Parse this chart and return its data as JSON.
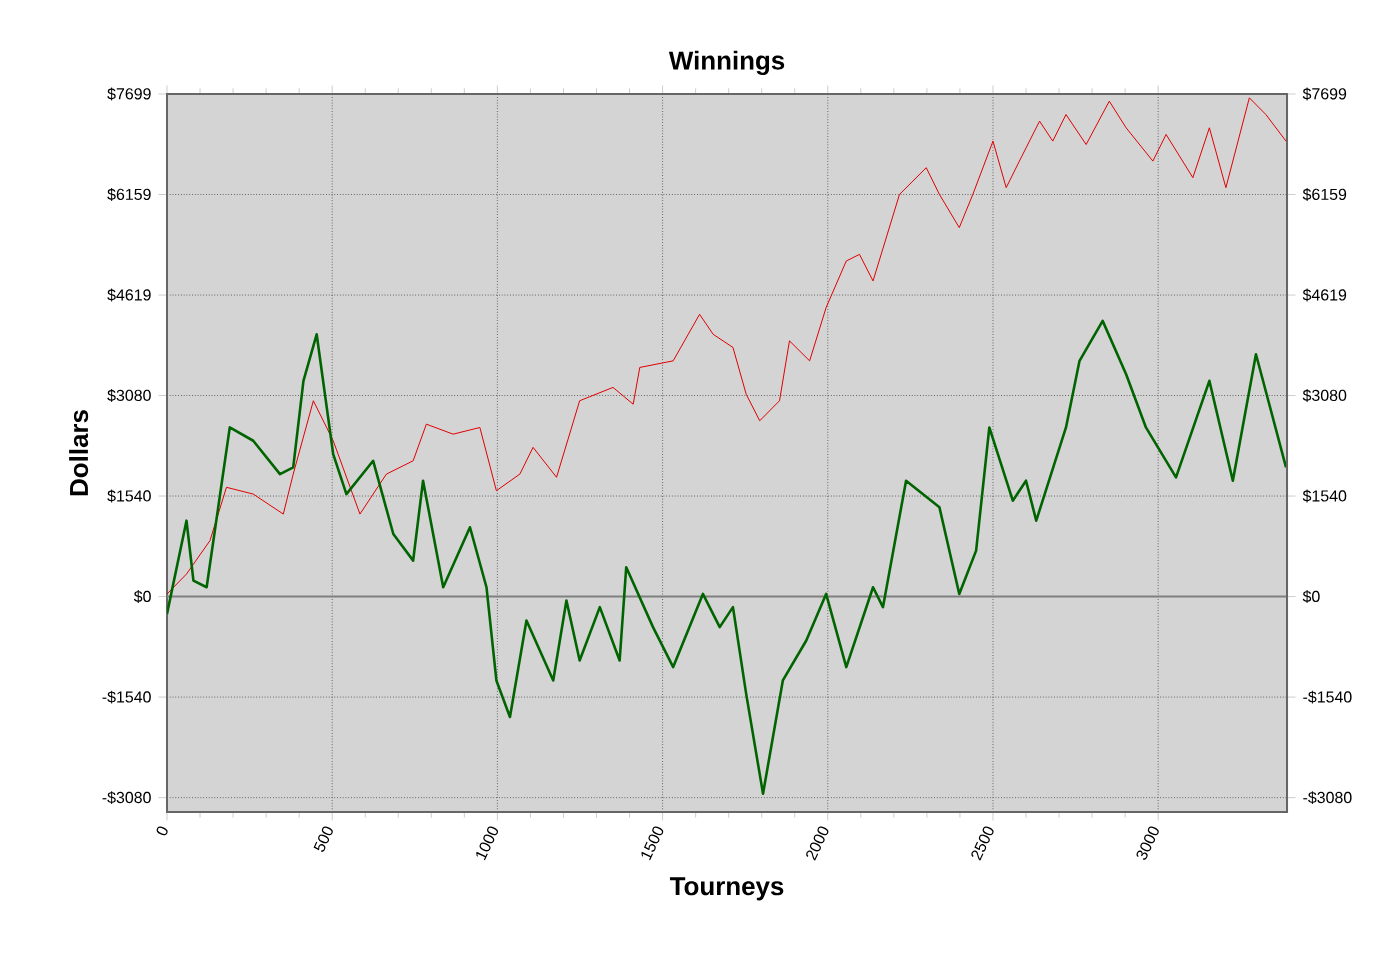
{
  "chart_data": {
    "type": "line",
    "title": "Winnings",
    "xlabel": "Tourneys",
    "ylabel": "Dollars",
    "xlim": [
      0,
      3390
    ],
    "ylim": [
      -3300,
      7699
    ],
    "xticks": [
      0,
      500,
      1000,
      1500,
      2000,
      2500,
      3000
    ],
    "yticks": [
      {
        "value": -3080,
        "label": "-$3080"
      },
      {
        "value": -1540,
        "label": "-$1540"
      },
      {
        "value": 0,
        "label": "$0"
      },
      {
        "value": 1540,
        "label": "$1540"
      },
      {
        "value": 3080,
        "label": "$3080"
      },
      {
        "value": 4619,
        "label": "$4619"
      },
      {
        "value": 6159,
        "label": "$6159"
      },
      {
        "value": 7699,
        "label": "$7699"
      }
    ],
    "y2lim": [
      -3300,
      7699
    ],
    "y2ticks": [
      {
        "value": -3080,
        "label": "-$3080"
      },
      {
        "value": -1540,
        "label": "-$1540"
      },
      {
        "value": 0,
        "label": "$0"
      },
      {
        "value": 1540,
        "label": "$1540"
      },
      {
        "value": 3080,
        "label": "$3080"
      },
      {
        "value": 4619,
        "label": "$4619"
      },
      {
        "value": 6159,
        "label": "$6159"
      },
      {
        "value": 7699,
        "label": "$7699"
      }
    ],
    "grid": true,
    "ref_lines": [
      {
        "axis": "y",
        "value": 0,
        "color": "#808080"
      }
    ],
    "series": [
      {
        "color": "#e00000",
        "x": [
          0,
          59,
          130,
          180,
          261,
          352,
          382,
          443,
          503,
          584,
          664,
          745,
          785,
          866,
          947,
          997,
          1068,
          1108,
          1179,
          1249,
          1350,
          1411,
          1431,
          1532,
          1612,
          1653,
          1713,
          1753,
          1794,
          1854,
          1884,
          1945,
          1995,
          2056,
          2096,
          2137,
          2217,
          2298,
          2338,
          2398,
          2439,
          2500,
          2540,
          2580,
          2641,
          2681,
          2721,
          2782,
          2852,
          2903,
          2984,
          3024,
          3105,
          3155,
          3205,
          3276,
          3326,
          3387
        ],
        "values": [
          40,
          345,
          857,
          1674,
          1570,
          1264,
          1876,
          3000,
          2387,
          1264,
          1876,
          2080,
          2641,
          2488,
          2590,
          1622,
          1876,
          2286,
          1827,
          3000,
          3204,
          2947,
          3510,
          3611,
          4324,
          4018,
          3816,
          3100,
          2693,
          3000,
          3917,
          3611,
          4428,
          5141,
          5242,
          4835,
          6160,
          6570,
          6160,
          5652,
          6160,
          6977,
          6264,
          6671,
          7283,
          6977,
          7384,
          6925,
          7589,
          7181,
          6671,
          7079,
          6417,
          7181,
          6264,
          7640,
          7384,
          6977
        ]
      },
      {
        "color": "#006400",
        "x": [
          0,
          59,
          80,
          120,
          190,
          261,
          342,
          382,
          413,
          453,
          503,
          543,
          624,
          685,
          745,
          775,
          836,
          917,
          967,
          997,
          1038,
          1088,
          1169,
          1209,
          1249,
          1310,
          1370,
          1390,
          1471,
          1532,
          1622,
          1673,
          1713,
          1753,
          1804,
          1864,
          1935,
          1995,
          2056,
          2137,
          2167,
          2237,
          2338,
          2398,
          2449,
          2489,
          2560,
          2600,
          2631,
          2721,
          2762,
          2832,
          2903,
          2963,
          3054,
          3155,
          3226,
          3296,
          3387
        ],
        "values": [
          -266,
          1163,
          245,
          143,
          2591,
          2387,
          1876,
          1980,
          3305,
          4018,
          2182,
          1570,
          2080,
          958,
          551,
          1775,
          143,
          1062,
          143,
          -1285,
          -1845,
          -367,
          -1285,
          -61,
          -979,
          -162,
          -979,
          450,
          -468,
          -1080,
          40,
          -468,
          -162,
          -1490,
          -3020,
          -1285,
          -673,
          40,
          -1080,
          143,
          -162,
          1775,
          1367,
          40,
          704,
          2591,
          1469,
          1775,
          1163,
          2591,
          3611,
          4223,
          3406,
          2591,
          1827,
          3305,
          1775,
          3712,
          1980
        ]
      }
    ]
  }
}
